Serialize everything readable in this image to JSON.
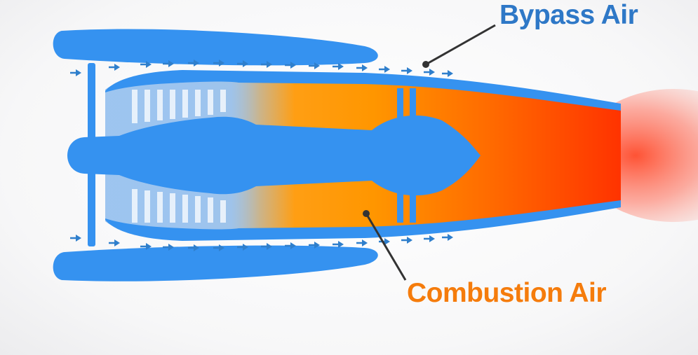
{
  "labels": {
    "bypass": "Bypass Air",
    "combustion": "Combustion Air"
  },
  "colors": {
    "engine_blue": "#3592f0",
    "arrow_blue": "#2f7fcc",
    "bypass_label": "#2e78c7",
    "combustion_label": "#f57c0c",
    "hot_orange": "#ff9a00",
    "exhaust_red": "#ff3a00",
    "leader_line": "#333333"
  },
  "icons": {
    "flow_arrow": "arrow-right-icon"
  }
}
